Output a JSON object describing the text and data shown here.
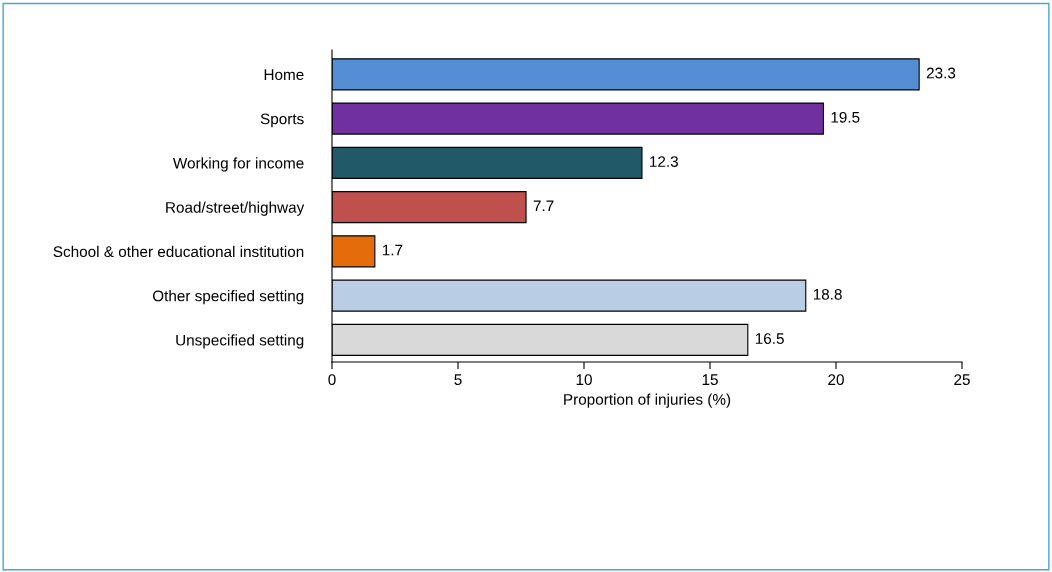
{
  "chart_data": {
    "type": "bar",
    "orientation": "horizontal",
    "xlabel": "Proportion of injuries (%)",
    "categories": [
      "Home",
      "Sports",
      "Working for income",
      "Road/street/highway",
      "School & other educational institution",
      "Other specified setting",
      "Unspecified setting"
    ],
    "values": [
      23.3,
      19.5,
      12.3,
      7.7,
      1.7,
      18.8,
      16.5
    ],
    "colors": [
      "#558ed5",
      "#7030a0",
      "#215968",
      "#c0504d",
      "#e46c0a",
      "#b9cde5",
      "#d9d9d9"
    ],
    "xlim": [
      0,
      25
    ],
    "xticks": [
      0,
      5,
      10,
      15,
      20,
      25
    ],
    "data_labels": true,
    "grid": false,
    "legend": false
  }
}
